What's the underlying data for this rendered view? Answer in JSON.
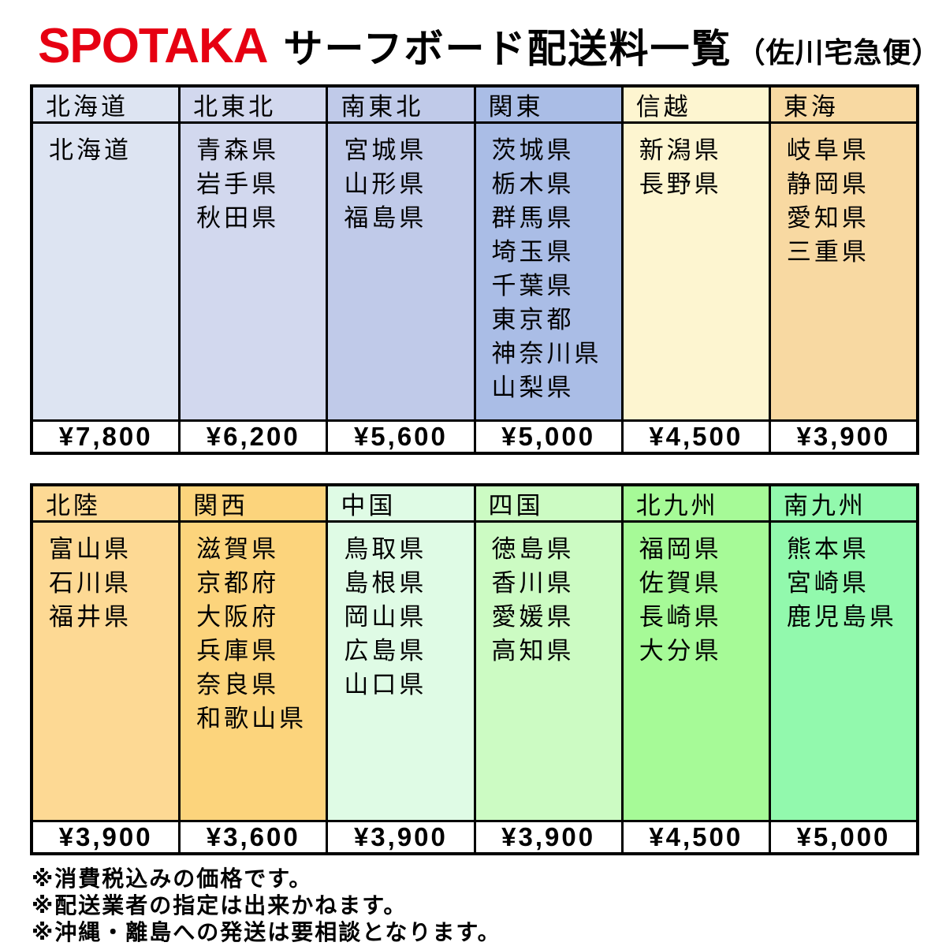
{
  "title": {
    "logo": "SPOTAKA",
    "main": "サーフボード配送料一覧",
    "suffix": "（佐川宅急便）"
  },
  "colors": {
    "logo_red": "#e60012",
    "border": "#000000",
    "price_bg": "#ffffff"
  },
  "tables": [
    {
      "columns": [
        {
          "region": "北海道",
          "prefectures": [
            "北海道"
          ],
          "price": "¥7,800",
          "color": "#dde4f2"
        },
        {
          "region": "北東北",
          "prefectures": [
            "青森県",
            "岩手県",
            "秋田県"
          ],
          "price": "¥6,200",
          "color": "#d2d8ee"
        },
        {
          "region": "南東北",
          "prefectures": [
            "宮城県",
            "山形県",
            "福島県"
          ],
          "price": "¥5,600",
          "color": "#c0cae9"
        },
        {
          "region": "関東",
          "prefectures": [
            "茨城県",
            "栃木県",
            "群馬県",
            "埼玉県",
            "千葉県",
            "東京都",
            "神奈川県",
            "山梨県"
          ],
          "price": "¥5,000",
          "color": "#aabde6"
        },
        {
          "region": "信越",
          "prefectures": [
            "新潟県",
            "長野県"
          ],
          "price": "¥4,500",
          "color": "#fdf5d0"
        },
        {
          "region": "東海",
          "prefectures": [
            "岐阜県",
            "静岡県",
            "愛知県",
            "三重県"
          ],
          "price": "¥3,900",
          "color": "#f8d9a2"
        }
      ]
    },
    {
      "columns": [
        {
          "region": "北陸",
          "prefectures": [
            "富山県",
            "石川県",
            "福井県"
          ],
          "price": "¥3,900",
          "color": "#fdd994"
        },
        {
          "region": "関西",
          "prefectures": [
            "滋賀県",
            "京都府",
            "大阪府",
            "兵庫県",
            "奈良県",
            "和歌山県"
          ],
          "price": "¥3,600",
          "color": "#fcd47c"
        },
        {
          "region": "中国",
          "prefectures": [
            "鳥取県",
            "島根県",
            "岡山県",
            "広島県",
            "山口県"
          ],
          "price": "¥3,900",
          "color": "#dffbe5"
        },
        {
          "region": "四国",
          "prefectures": [
            "徳島県",
            "香川県",
            "愛媛県",
            "高知県"
          ],
          "price": "¥3,900",
          "color": "#ccfbc3"
        },
        {
          "region": "北九州",
          "prefectures": [
            "福岡県",
            "佐賀県",
            "長崎県",
            "大分県"
          ],
          "price": "¥4,500",
          "color": "#a6fa97"
        },
        {
          "region": "南九州",
          "prefectures": [
            "熊本県",
            "宮崎県",
            "鹿児島県"
          ],
          "price": "¥5,000",
          "color": "#92f9ad"
        }
      ]
    }
  ],
  "notes": [
    "※消費税込みの価格です。",
    "※配送業者の指定は出来かねます。",
    "※沖縄・離島への発送は要相談となります。"
  ]
}
